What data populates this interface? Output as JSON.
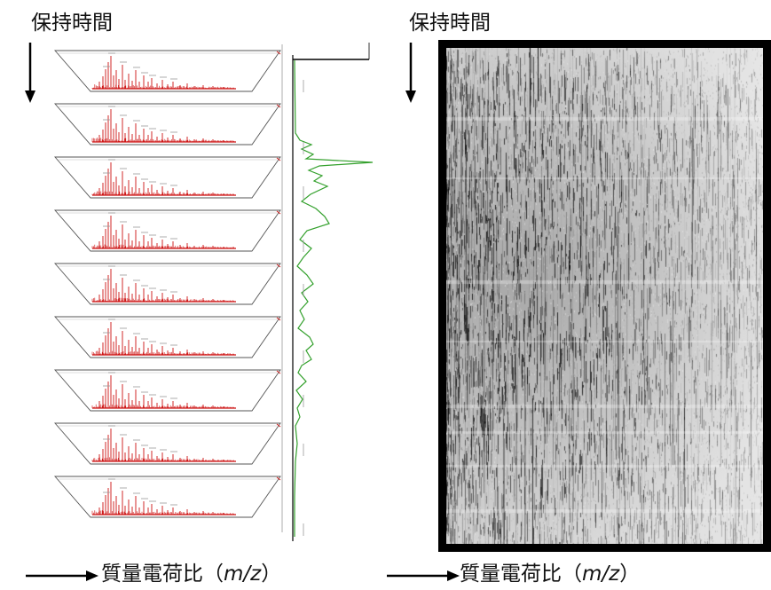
{
  "left_panel": {
    "y_axis_label": "保持時間",
    "x_axis_label": {
      "prefix": "質量電荷比（",
      "italic": "m/z",
      "suffix": "）"
    }
  },
  "right_panel": {
    "y_axis_label": "保持時間",
    "x_axis_label": {
      "prefix": "質量電荷比（",
      "italic": "m/z",
      "suffix": "）"
    }
  },
  "colors": {
    "spectrum": "#cc1111",
    "chromatogram": "#33a02c",
    "frame": "#000000",
    "outline": "#555555"
  }
}
